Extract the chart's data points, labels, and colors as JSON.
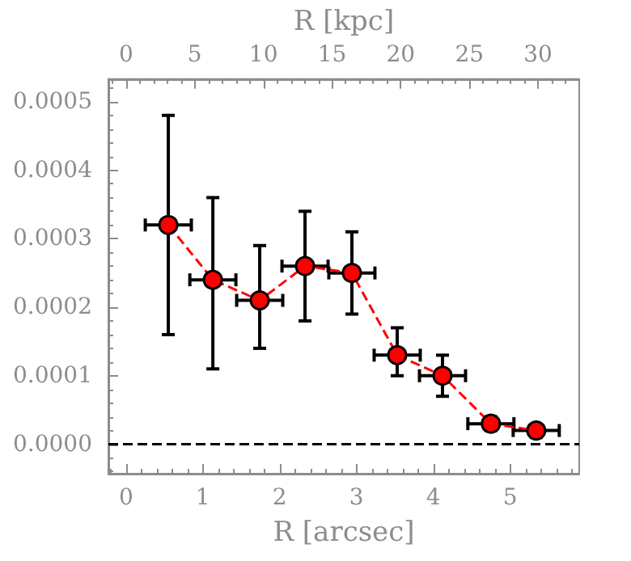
{
  "chart_data": {
    "type": "line",
    "xlabel": "R [arcsec]",
    "x2label": "R [kpc]",
    "x": [
      0.55,
      1.13,
      1.74,
      2.33,
      2.94,
      3.53,
      4.12,
      4.75,
      5.34
    ],
    "series": [
      {
        "color": "#ff0000",
        "values": [
          0.00032,
          0.00024,
          0.00021,
          0.00026,
          0.00025,
          0.00013,
          0.0001,
          3e-05,
          2e-05
        ],
        "errors": [
          [
            0.00016,
            0.00048
          ],
          [
            0.00011,
            0.00036
          ],
          [
            0.00014,
            0.00029
          ],
          [
            0.00018,
            0.00034
          ],
          [
            0.00019,
            0.00031
          ],
          [
            0.0001,
            0.00017
          ],
          [
            7e-05,
            0.00013
          ],
          [
            2e-05,
            4e-05
          ],
          [
            1e-05,
            2e-05
          ]
        ],
        "xerrors": [
          0.3,
          0.3,
          0.3,
          0.3,
          0.3,
          0.3,
          0.3,
          0.3,
          0.3
        ]
      }
    ],
    "xlim": [
      -0.23,
      5.9
    ],
    "xticks": [
      0,
      1,
      2,
      3,
      4,
      5
    ],
    "x2lim": [
      -1.29,
      33.0
    ],
    "x2ticks": [
      0,
      5,
      10,
      15,
      20,
      25,
      30
    ],
    "ylim": [
      -4.3e-05,
      0.000533
    ],
    "yticks": [
      {
        "value": 0,
        "label": "0.0000"
      },
      0.0001,
      0.0002,
      0.0003,
      0.0004,
      0.0005
    ],
    "ref_lines": [
      {
        "axis": "y",
        "value": 0,
        "color": "#000000",
        "line_style": "dashed"
      }
    ],
    "marker": "circle",
    "line_style": "dashed"
  }
}
